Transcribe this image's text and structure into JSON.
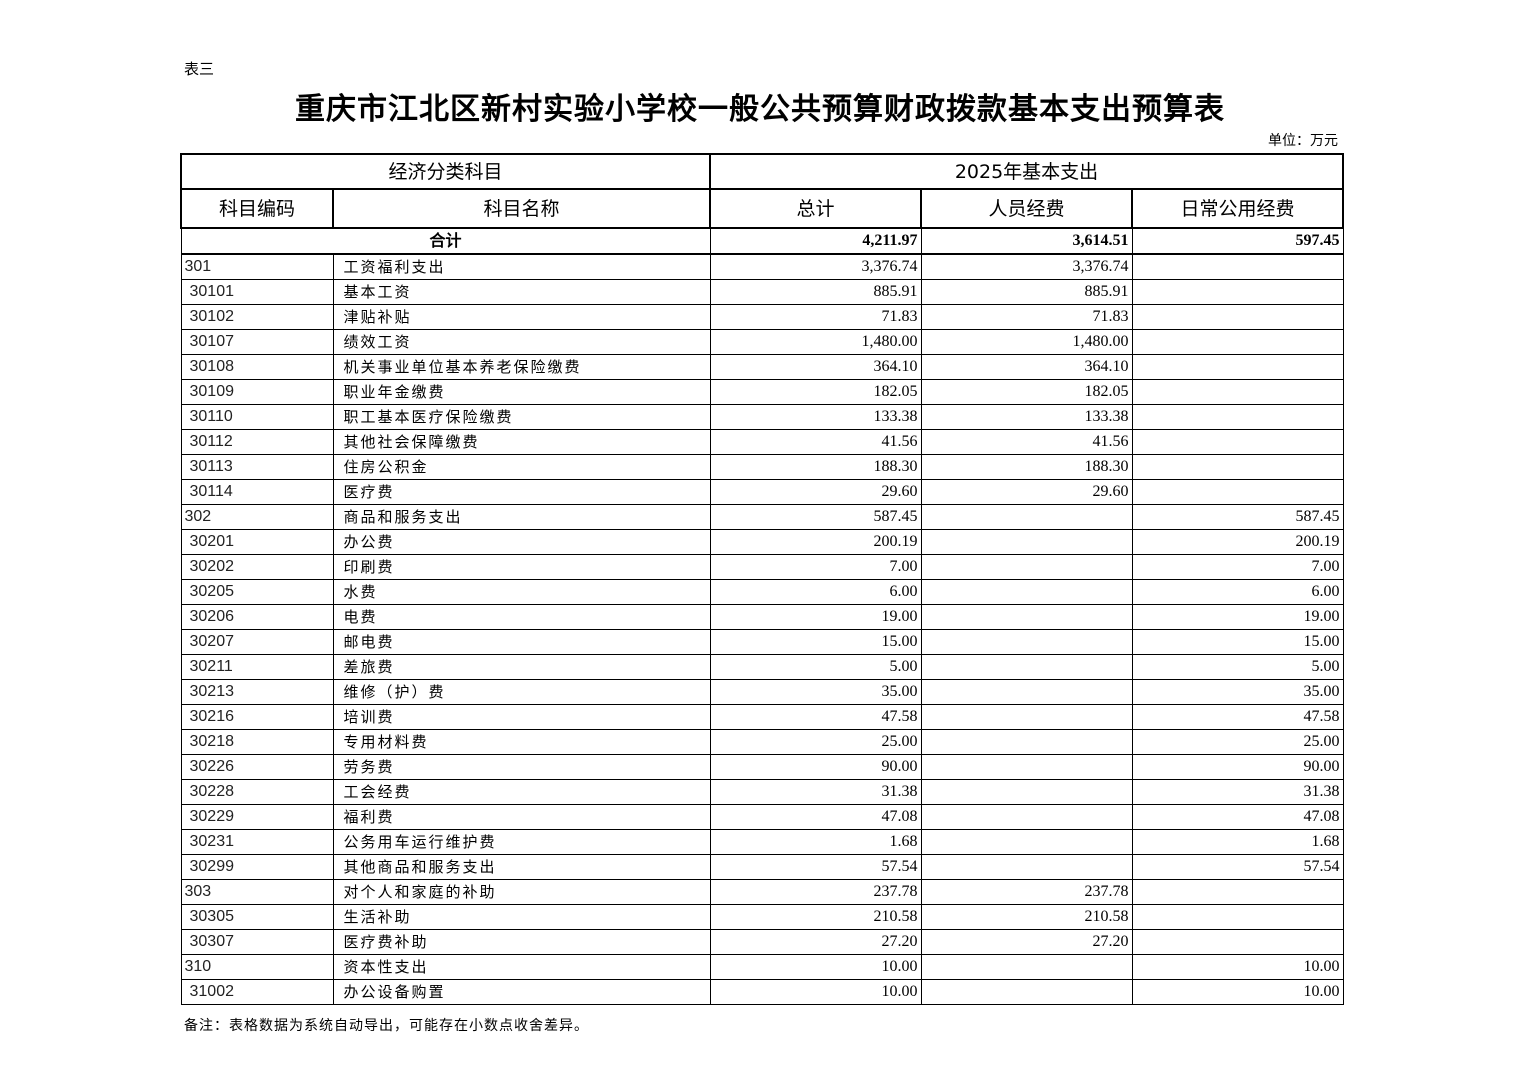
{
  "doc": {
    "tag": "表三",
    "title": "重庆市江北区新村实验小学校一般公共预算财政拨款基本支出预算表",
    "unit": "单位：万元",
    "note": "备注：表格数据为系统自动导出，可能存在小数点收舍差异。"
  },
  "table": {
    "group_headers": [
      "经济分类科目",
      "2025年基本支出"
    ],
    "headers": [
      "科目编码",
      "科目名称",
      "总计",
      "人员经费",
      "日常公用经费"
    ],
    "total": {
      "label": "合计",
      "total": "4,211.97",
      "personnel": "3,614.51",
      "public": "597.45"
    },
    "rows": [
      {
        "code": "301",
        "name": "工资福利支出",
        "total": "3,376.74",
        "personnel": "3,376.74",
        "public": "",
        "level": 1
      },
      {
        "code": "30101",
        "name": "基本工资",
        "total": "885.91",
        "personnel": "885.91",
        "public": "",
        "level": 2
      },
      {
        "code": "30102",
        "name": "津贴补贴",
        "total": "71.83",
        "personnel": "71.83",
        "public": "",
        "level": 2
      },
      {
        "code": "30107",
        "name": "绩效工资",
        "total": "1,480.00",
        "personnel": "1,480.00",
        "public": "",
        "level": 2
      },
      {
        "code": "30108",
        "name": "机关事业单位基本养老保险缴费",
        "total": "364.10",
        "personnel": "364.10",
        "public": "",
        "level": 2
      },
      {
        "code": "30109",
        "name": "职业年金缴费",
        "total": "182.05",
        "personnel": "182.05",
        "public": "",
        "level": 2
      },
      {
        "code": "30110",
        "name": "职工基本医疗保险缴费",
        "total": "133.38",
        "personnel": "133.38",
        "public": "",
        "level": 2
      },
      {
        "code": "30112",
        "name": "其他社会保障缴费",
        "total": "41.56",
        "personnel": "41.56",
        "public": "",
        "level": 2
      },
      {
        "code": "30113",
        "name": "住房公积金",
        "total": "188.30",
        "personnel": "188.30",
        "public": "",
        "level": 2
      },
      {
        "code": "30114",
        "name": "医疗费",
        "total": "29.60",
        "personnel": "29.60",
        "public": "",
        "level": 2
      },
      {
        "code": "302",
        "name": "商品和服务支出",
        "total": "587.45",
        "personnel": "",
        "public": "587.45",
        "level": 1
      },
      {
        "code": "30201",
        "name": "办公费",
        "total": "200.19",
        "personnel": "",
        "public": "200.19",
        "level": 2
      },
      {
        "code": "30202",
        "name": "印刷费",
        "total": "7.00",
        "personnel": "",
        "public": "7.00",
        "level": 2
      },
      {
        "code": "30205",
        "name": "水费",
        "total": "6.00",
        "personnel": "",
        "public": "6.00",
        "level": 2
      },
      {
        "code": "30206",
        "name": "电费",
        "total": "19.00",
        "personnel": "",
        "public": "19.00",
        "level": 2
      },
      {
        "code": "30207",
        "name": "邮电费",
        "total": "15.00",
        "personnel": "",
        "public": "15.00",
        "level": 2
      },
      {
        "code": "30211",
        "name": "差旅费",
        "total": "5.00",
        "personnel": "",
        "public": "5.00",
        "level": 2
      },
      {
        "code": "30213",
        "name": "维修（护）费",
        "total": "35.00",
        "personnel": "",
        "public": "35.00",
        "level": 2
      },
      {
        "code": "30216",
        "name": "培训费",
        "total": "47.58",
        "personnel": "",
        "public": "47.58",
        "level": 2
      },
      {
        "code": "30218",
        "name": "专用材料费",
        "total": "25.00",
        "personnel": "",
        "public": "25.00",
        "level": 2
      },
      {
        "code": "30226",
        "name": "劳务费",
        "total": "90.00",
        "personnel": "",
        "public": "90.00",
        "level": 2
      },
      {
        "code": "30228",
        "name": "工会经费",
        "total": "31.38",
        "personnel": "",
        "public": "31.38",
        "level": 2
      },
      {
        "code": "30229",
        "name": "福利费",
        "total": "47.08",
        "personnel": "",
        "public": "47.08",
        "level": 2
      },
      {
        "code": "30231",
        "name": "公务用车运行维护费",
        "total": "1.68",
        "personnel": "",
        "public": "1.68",
        "level": 2
      },
      {
        "code": "30299",
        "name": "其他商品和服务支出",
        "total": "57.54",
        "personnel": "",
        "public": "57.54",
        "level": 2
      },
      {
        "code": "303",
        "name": "对个人和家庭的补助",
        "total": "237.78",
        "personnel": "237.78",
        "public": "",
        "level": 1
      },
      {
        "code": "30305",
        "name": "生活补助",
        "total": "210.58",
        "personnel": "210.58",
        "public": "",
        "level": 2
      },
      {
        "code": "30307",
        "name": "医疗费补助",
        "total": "27.20",
        "personnel": "27.20",
        "public": "",
        "level": 2
      },
      {
        "code": "310",
        "name": "资本性支出",
        "total": "10.00",
        "personnel": "",
        "public": "10.00",
        "level": 1
      },
      {
        "code": "31002",
        "name": "办公设备购置",
        "total": "10.00",
        "personnel": "",
        "public": "10.00",
        "level": 2
      }
    ]
  }
}
